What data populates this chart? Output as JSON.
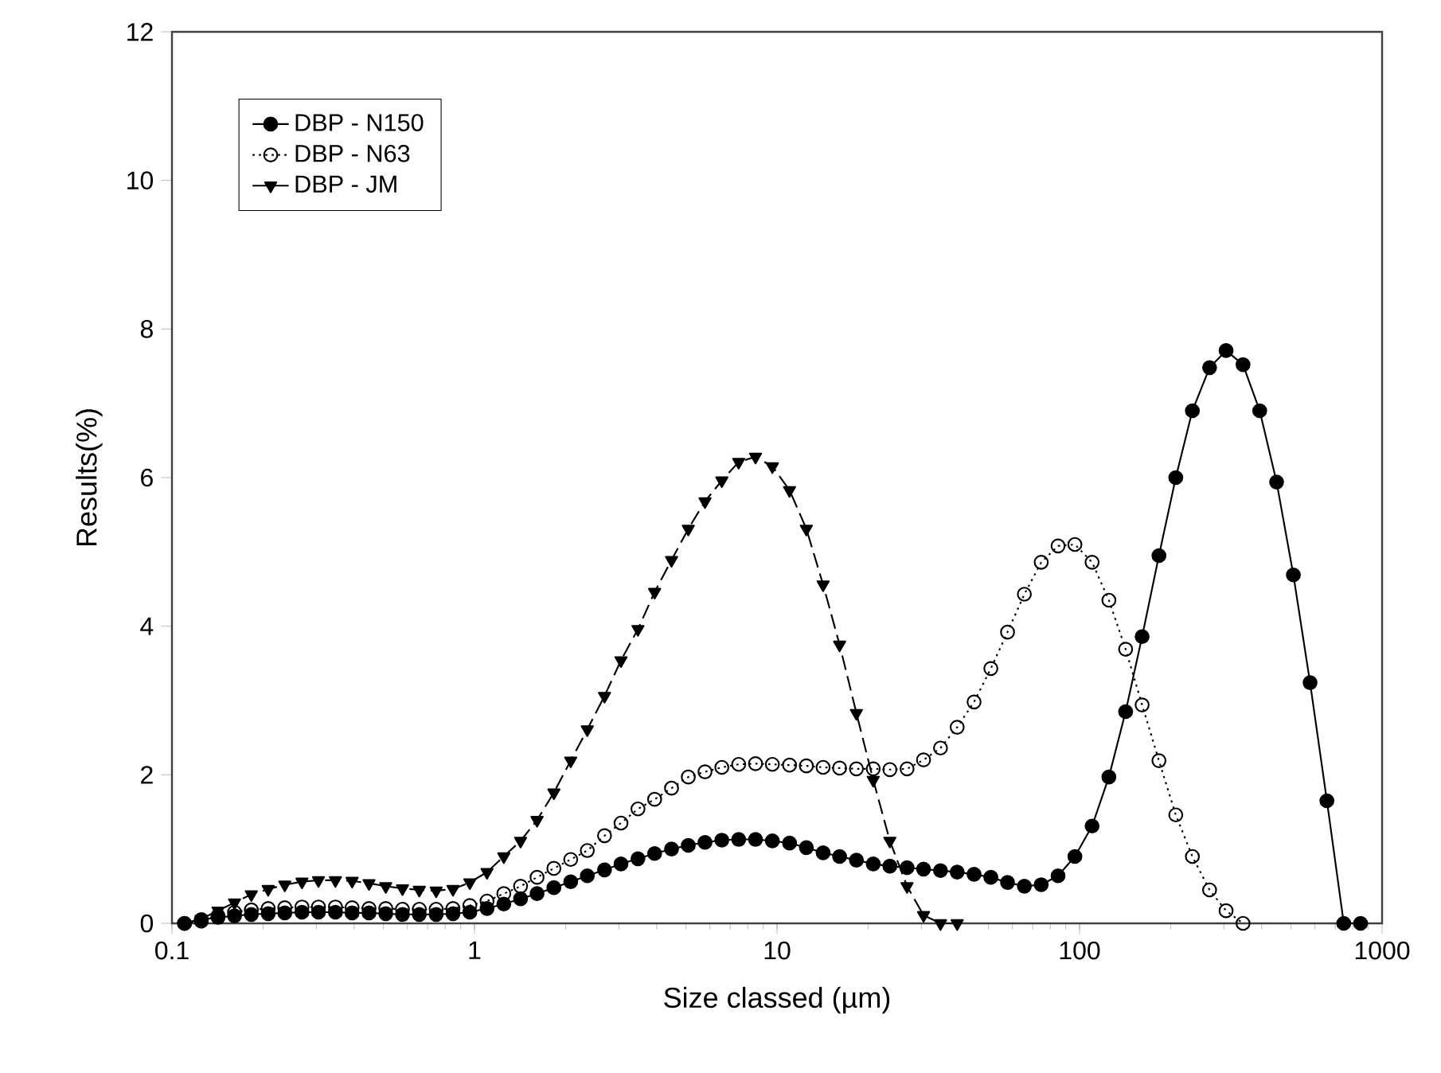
{
  "chart_data": {
    "type": "line",
    "xlabel": "Size classed (µm)",
    "ylabel": "Results(%)",
    "log": "x",
    "grid": false,
    "legend": "top left",
    "xlim": [
      0.1,
      1000
    ],
    "ylim": [
      0,
      12
    ],
    "xticks": [
      0.1,
      1,
      10,
      100,
      1000
    ],
    "yticks": [
      0,
      2,
      4,
      6,
      8,
      10,
      12
    ],
    "series": [
      {
        "name": "DBP - N150",
        "color": "#000000",
        "marker": "circle",
        "line_style": "solid",
        "x": [
          0.11,
          0.125,
          0.142,
          0.161,
          0.183,
          0.208,
          0.236,
          0.269,
          0.305,
          0.347,
          0.394,
          0.448,
          0.509,
          0.578,
          0.657,
          0.747,
          0.849,
          0.965,
          1.1,
          1.25,
          1.42,
          1.61,
          1.83,
          2.08,
          2.36,
          2.69,
          3.05,
          3.47,
          3.94,
          4.48,
          5.09,
          5.78,
          6.57,
          7.47,
          8.49,
          9.65,
          11.0,
          12.5,
          14.2,
          16.1,
          18.3,
          20.8,
          23.6,
          26.9,
          30.5,
          34.7,
          39.4,
          44.8,
          50.9,
          57.8,
          65.7,
          74.7,
          84.9,
          96.5,
          110,
          125,
          142,
          161,
          183,
          208,
          236,
          269,
          305,
          347,
          394,
          448,
          509,
          578,
          657,
          747,
          849
        ],
        "values": [
          0,
          0.05,
          0.08,
          0.1,
          0.12,
          0.13,
          0.14,
          0.15,
          0.15,
          0.15,
          0.14,
          0.14,
          0.13,
          0.12,
          0.12,
          0.12,
          0.13,
          0.15,
          0.2,
          0.26,
          0.33,
          0.4,
          0.48,
          0.56,
          0.64,
          0.72,
          0.8,
          0.87,
          0.94,
          1.0,
          1.05,
          1.09,
          1.12,
          1.13,
          1.13,
          1.11,
          1.08,
          1.02,
          0.95,
          0.9,
          0.85,
          0.8,
          0.77,
          0.75,
          0.73,
          0.71,
          0.69,
          0.66,
          0.62,
          0.55,
          0.5,
          0.52,
          0.64,
          0.9,
          1.31,
          1.97,
          2.85,
          3.86,
          4.95,
          6.0,
          6.9,
          7.48,
          7.71,
          7.52,
          6.9,
          5.94,
          4.69,
          3.24,
          1.65,
          0,
          0
        ]
      },
      {
        "name": "DBP - N63",
        "color": "#000000",
        "marker": "circle",
        "line_style": "dotted",
        "x": [
          0.11,
          0.125,
          0.142,
          0.161,
          0.183,
          0.208,
          0.236,
          0.269,
          0.305,
          0.347,
          0.394,
          0.448,
          0.509,
          0.578,
          0.657,
          0.747,
          0.849,
          0.965,
          1.1,
          1.25,
          1.42,
          1.61,
          1.83,
          2.08,
          2.36,
          2.69,
          3.05,
          3.47,
          3.94,
          4.48,
          5.09,
          5.78,
          6.57,
          7.47,
          8.49,
          9.65,
          11.0,
          12.5,
          14.2,
          16.1,
          18.3,
          20.8,
          23.6,
          26.9,
          30.5,
          34.7,
          39.4,
          44.8,
          50.9,
          57.8,
          65.7,
          74.7,
          84.9,
          96.5,
          110,
          125,
          142,
          161,
          183,
          208,
          236,
          269,
          305,
          347
        ],
        "values": [
          0,
          0.03,
          0.1,
          0.15,
          0.18,
          0.2,
          0.21,
          0.22,
          0.22,
          0.22,
          0.21,
          0.2,
          0.2,
          0.19,
          0.19,
          0.19,
          0.2,
          0.24,
          0.3,
          0.4,
          0.5,
          0.62,
          0.74,
          0.86,
          0.98,
          1.18,
          1.35,
          1.54,
          1.67,
          1.82,
          1.97,
          2.04,
          2.1,
          2.14,
          2.15,
          2.14,
          2.13,
          2.12,
          2.1,
          2.09,
          2.08,
          2.08,
          2.07,
          2.08,
          2.2,
          2.36,
          2.64,
          2.98,
          3.43,
          3.92,
          4.43,
          4.86,
          5.08,
          5.1,
          4.86,
          4.35,
          3.69,
          2.94,
          2.19,
          1.46,
          0.9,
          0.45,
          0.17,
          0
        ]
      },
      {
        "name": "DBP - JM",
        "color": "#000000",
        "marker": "triangle",
        "line_style": "dashed",
        "x": [
          0.11,
          0.125,
          0.142,
          0.161,
          0.183,
          0.208,
          0.236,
          0.269,
          0.305,
          0.347,
          0.394,
          0.448,
          0.509,
          0.578,
          0.657,
          0.747,
          0.849,
          0.965,
          1.1,
          1.25,
          1.42,
          1.61,
          1.83,
          2.08,
          2.36,
          2.69,
          3.05,
          3.47,
          3.94,
          4.48,
          5.09,
          5.78,
          6.57,
          7.47,
          8.49,
          9.65,
          11.0,
          12.5,
          14.2,
          16.1,
          18.3,
          20.8,
          23.6,
          26.9,
          30.5,
          34.7,
          39.4
        ],
        "values": [
          0,
          0.06,
          0.17,
          0.28,
          0.39,
          0.46,
          0.52,
          0.56,
          0.58,
          0.58,
          0.57,
          0.54,
          0.5,
          0.47,
          0.45,
          0.44,
          0.46,
          0.55,
          0.69,
          0.9,
          1.11,
          1.39,
          1.76,
          2.19,
          2.61,
          3.06,
          3.54,
          3.96,
          4.46,
          4.89,
          5.31,
          5.68,
          5.96,
          6.21,
          6.28,
          6.15,
          5.83,
          5.31,
          4.56,
          3.75,
          2.83,
          1.93,
          1.11,
          0.5,
          0.11,
          0,
          0
        ]
      }
    ]
  }
}
